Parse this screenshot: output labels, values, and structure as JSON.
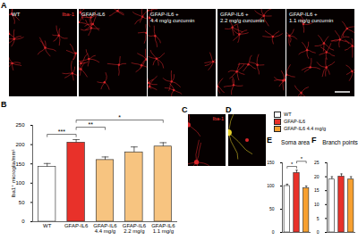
{
  "images": [
    {
      "panel": "A",
      "stain": "Iba-1",
      "labels": [
        "WT",
        "GFAP-IL6",
        "GFAP-IL6 + 4.4 mg/g curcumin",
        "GFAP-IL6 + 2.2 mg/g curcumin",
        "GFAP-IL6 + 1.1 mg/g curcumin"
      ]
    },
    {
      "panel": "C",
      "stain": "Iba-1"
    },
    {
      "panel": "D"
    }
  ],
  "chart_data": [
    {
      "panel": "B",
      "type": "bar",
      "categories": [
        "WT",
        "GFAP-IL6",
        "GFAP-IL6 4.4 mg/g",
        "GFAP-IL6 2.2 mg/g",
        "GFAP-IL6 1.1 mg/g"
      ],
      "values": [
        142,
        205,
        160,
        180,
        195
      ],
      "errors": [
        9,
        8,
        8,
        14,
        10
      ],
      "colors": [
        "#ffffff",
        "#e8312a",
        "#f7c480",
        "#f7c480",
        "#f7c480"
      ],
      "ylabel": "Iba1⁺ microglia/mm²",
      "ylim": [
        0,
        250
      ],
      "yticks": [
        0,
        50,
        100,
        150,
        200,
        250
      ],
      "annotations": [
        {
          "from": "WT",
          "to": "GFAP-IL6",
          "label": "***"
        },
        {
          "from": "GFAP-IL6",
          "to": "GFAP-IL6 4.4 mg/g",
          "label": "**"
        },
        {
          "from": "GFAP-IL6",
          "to": "GFAP-IL6 1.1 mg/g",
          "label": "*"
        }
      ]
    },
    {
      "panel": "E",
      "type": "bar",
      "title": "Soma area",
      "categories": [
        "WT",
        "GFAP-IL6",
        "GFAP-IL6 4.4 mg/g"
      ],
      "values": [
        100,
        128,
        95
      ],
      "errors": [
        4,
        6,
        5
      ],
      "colors": [
        "#ffffff",
        "#e8312a",
        "#f7a030"
      ],
      "ylim": [
        0,
        150
      ],
      "yticks": [
        0,
        50,
        100,
        150
      ],
      "tick_labels": "y",
      "legend": "top",
      "annotations": [
        {
          "from": "WT",
          "to": "GFAP-IL6",
          "label": "*"
        },
        {
          "from": "GFAP-IL6",
          "to": "GFAP-IL6 4.4 mg/g",
          "label": "*"
        }
      ]
    },
    {
      "panel": "F",
      "type": "bar",
      "title": "Branch points",
      "categories": [
        "WT",
        "GFAP-IL6",
        "GFAP-IL6 4.4 mg/g"
      ],
      "values": [
        19,
        20,
        19
      ],
      "errors": [
        1,
        1,
        1
      ],
      "colors": [
        "#ffffff",
        "#e8312a",
        "#f7a030"
      ],
      "ylim": [
        0,
        25
      ],
      "yticks": [
        0,
        5,
        10,
        15,
        20,
        25
      ],
      "tick_labels": "y"
    }
  ]
}
